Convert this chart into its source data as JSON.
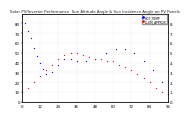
{
  "title": "Solar PV/Inverter Performance  Sun Altitude Angle & Sun Incidence Angle on PV Panels",
  "title_fontsize": 2.8,
  "bg_color": "#ffffff",
  "grid_color": "#cccccc",
  "blue_x": [
    0,
    2,
    4,
    6,
    8,
    10,
    12,
    14,
    16,
    20,
    24,
    28,
    32,
    36,
    42,
    48,
    55,
    62,
    68,
    74,
    80,
    86,
    92,
    96
  ],
  "blue_y": [
    88,
    80,
    72,
    65,
    55,
    47,
    40,
    34,
    28,
    30,
    38,
    44,
    44,
    42,
    42,
    44,
    50,
    54,
    54,
    50,
    42,
    32,
    20,
    8
  ],
  "red_x": [
    0,
    4,
    8,
    12,
    16,
    20,
    24,
    28,
    32,
    36,
    40,
    44,
    48,
    52,
    56,
    60,
    64,
    68,
    72,
    76,
    80,
    84,
    88,
    92,
    96
  ],
  "red_y": [
    10,
    14,
    20,
    26,
    32,
    38,
    44,
    48,
    50,
    50,
    48,
    46,
    44,
    44,
    42,
    42,
    38,
    36,
    32,
    28,
    24,
    20,
    14,
    10,
    8
  ],
  "ylim": [
    0,
    90
  ],
  "xlim": [
    0,
    96
  ],
  "yticks_left": [
    0,
    10,
    20,
    30,
    40,
    50,
    60,
    70,
    80
  ],
  "ytick_labels_left": [
    "0",
    "10",
    "20",
    "30",
    "40",
    "50",
    "60",
    "70",
    "80"
  ],
  "yticks_right": [
    0,
    10,
    20,
    30,
    40,
    50,
    60,
    70,
    80
  ],
  "ytick_labels_right": [
    "0.",
    "1.",
    "2.",
    "3.",
    "4.",
    "5.",
    "6.",
    "7.",
    "8."
  ],
  "xticks": [
    0,
    12,
    24,
    36,
    48,
    60,
    72,
    84,
    96
  ],
  "tick_fontsize": 2.8,
  "legend_blue_label": "HOT_TEMP",
  "legend_red_label": "ILLUM_APPROX",
  "legend_color_blue": "#0000ff",
  "legend_color_red": "#ff0000"
}
